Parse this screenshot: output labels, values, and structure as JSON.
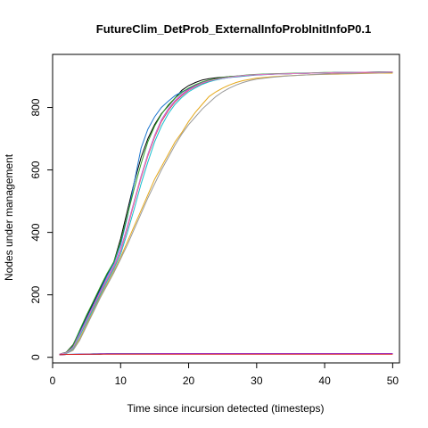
{
  "chart_data": {
    "type": "line",
    "title": "FutureClim_DetProb_ExternalInfoProbInitInfoP0.1",
    "xlabel": "Time since incursion detected (timesteps)",
    "ylabel": "Nodes under management",
    "xlim": [
      0,
      51
    ],
    "ylim": [
      -18,
      970
    ],
    "xticks": [
      0,
      10,
      20,
      30,
      40,
      50
    ],
    "yticks": [
      0,
      200,
      400,
      600,
      800
    ],
    "grid": false,
    "legend": "none",
    "series": [
      {
        "color": "#000000",
        "x": [
          1,
          2,
          3,
          4,
          5,
          6,
          7,
          8,
          9,
          10,
          11,
          12,
          13,
          14,
          15,
          16,
          17,
          18,
          19,
          20,
          21,
          22,
          23,
          24,
          25,
          26,
          27,
          28,
          29,
          30,
          32,
          34,
          36,
          38,
          40,
          42,
          44,
          46,
          48,
          50
        ],
        "y": [
          10,
          16,
          40,
          85,
          130,
          175,
          220,
          265,
          305,
          380,
          470,
          560,
          640,
          700,
          745,
          780,
          805,
          830,
          855,
          870,
          880,
          888,
          892,
          895,
          897,
          899,
          900,
          902,
          903,
          905,
          907,
          908,
          909,
          910,
          911,
          912,
          912,
          913,
          913,
          914
        ]
      },
      {
        "color": "#1f78d1",
        "x": [
          1,
          2,
          3,
          4,
          5,
          6,
          7,
          8,
          9,
          10,
          11,
          12,
          13,
          14,
          15,
          16,
          17,
          18,
          19,
          20,
          21,
          22,
          23,
          24,
          25,
          26,
          27,
          28,
          29,
          30,
          32,
          34,
          36,
          38,
          40,
          42,
          44,
          46,
          48,
          50
        ],
        "y": [
          10,
          15,
          35,
          80,
          125,
          170,
          215,
          260,
          300,
          360,
          450,
          560,
          670,
          730,
          770,
          800,
          820,
          838,
          850,
          860,
          870,
          878,
          884,
          889,
          893,
          896,
          898,
          900,
          902,
          904,
          906,
          908,
          909,
          910,
          911,
          912,
          913,
          913,
          914,
          914
        ]
      },
      {
        "color": "#e5a81a",
        "x": [
          1,
          2,
          3,
          4,
          5,
          6,
          7,
          8,
          9,
          10,
          11,
          12,
          13,
          14,
          15,
          16,
          17,
          18,
          19,
          20,
          21,
          22,
          23,
          24,
          25,
          26,
          27,
          28,
          29,
          30,
          32,
          34,
          36,
          38,
          40,
          42,
          44,
          46,
          48,
          50
        ],
        "y": [
          10,
          12,
          25,
          60,
          105,
          150,
          195,
          235,
          275,
          320,
          370,
          420,
          470,
          520,
          570,
          610,
          650,
          690,
          720,
          755,
          785,
          810,
          835,
          850,
          862,
          872,
          880,
          886,
          890,
          894,
          898,
          901,
          903,
          905,
          906,
          907,
          908,
          909,
          910,
          910
        ]
      },
      {
        "color": "#999999",
        "x": [
          1,
          2,
          3,
          4,
          5,
          6,
          7,
          8,
          9,
          10,
          11,
          12,
          13,
          14,
          15,
          16,
          17,
          18,
          19,
          20,
          21,
          22,
          23,
          24,
          25,
          26,
          27,
          28,
          29,
          30,
          32,
          34,
          36,
          38,
          40,
          42,
          44,
          46,
          48,
          50
        ],
        "y": [
          10,
          12,
          22,
          55,
          100,
          145,
          190,
          230,
          270,
          315,
          360,
          410,
          460,
          510,
          555,
          600,
          640,
          680,
          715,
          745,
          770,
          795,
          815,
          835,
          850,
          862,
          872,
          880,
          886,
          891,
          896,
          900,
          903,
          905,
          907,
          908,
          909,
          910,
          911,
          912
        ]
      },
      {
        "color": "#8a2be2",
        "x": [
          1,
          2,
          3,
          4,
          5,
          6,
          7,
          8,
          9,
          10,
          11,
          12,
          13,
          14,
          15,
          16,
          17,
          18,
          19,
          20,
          21,
          22,
          23,
          24,
          25,
          26,
          27,
          28,
          29,
          30,
          32,
          34,
          36,
          38,
          40,
          42,
          44,
          46,
          48,
          50
        ],
        "y": [
          10,
          14,
          32,
          75,
          120,
          165,
          210,
          252,
          292,
          345,
          420,
          500,
          580,
          650,
          710,
          760,
          795,
          822,
          842,
          858,
          870,
          879,
          886,
          891,
          895,
          898,
          900,
          902,
          904,
          905,
          907,
          908,
          909,
          910,
          911,
          912,
          912,
          913,
          913,
          914
        ]
      },
      {
        "color": "#d62728",
        "x": [
          1,
          2,
          3,
          4,
          5,
          6,
          7,
          8,
          9,
          10,
          11,
          12,
          13,
          14,
          15,
          16,
          17,
          18,
          19,
          20,
          21,
          22,
          23,
          24,
          25,
          26,
          27,
          28,
          29,
          30,
          32,
          34,
          36,
          38,
          40,
          42,
          44,
          46,
          48,
          50
        ],
        "y": [
          10,
          14,
          30,
          72,
          118,
          162,
          206,
          248,
          288,
          340,
          415,
          495,
          575,
          645,
          705,
          755,
          790,
          818,
          838,
          855,
          867,
          877,
          884,
          890,
          894,
          897,
          899,
          901,
          903,
          905,
          907,
          908,
          909,
          910,
          911,
          911,
          912,
          912,
          913,
          913
        ]
      },
      {
        "color": "#2ca02c",
        "x": [
          1,
          2,
          3,
          4,
          5,
          6,
          7,
          8,
          9,
          10,
          11,
          12,
          13,
          14,
          15,
          16,
          17,
          18,
          19,
          20,
          21,
          22,
          23,
          24,
          25,
          26,
          27,
          28,
          29,
          30,
          32,
          34,
          36,
          38,
          40,
          42,
          44,
          46,
          48,
          50
        ],
        "y": [
          10,
          15,
          38,
          88,
          135,
          180,
          225,
          268,
          305,
          370,
          455,
          540,
          620,
          690,
          740,
          778,
          808,
          830,
          848,
          862,
          873,
          882,
          888,
          892,
          896,
          899,
          901,
          903,
          905,
          906,
          908,
          909,
          910,
          911,
          912,
          912,
          913,
          913,
          914,
          914
        ]
      },
      {
        "color": "#17becf",
        "x": [
          1,
          2,
          3,
          4,
          5,
          6,
          7,
          8,
          9,
          10,
          11,
          12,
          13,
          14,
          15,
          16,
          17,
          18,
          19,
          20,
          21,
          22,
          23,
          24,
          25,
          26,
          27,
          28,
          29,
          30,
          32,
          34,
          36,
          38,
          40,
          42,
          44,
          46,
          48,
          50
        ],
        "y": [
          10,
          13,
          28,
          68,
          112,
          156,
          200,
          242,
          282,
          330,
          400,
          475,
          555,
          625,
          690,
          740,
          780,
          810,
          832,
          850,
          863,
          874,
          882,
          888,
          893,
          896,
          899,
          901,
          903,
          905,
          907,
          908,
          909,
          910,
          911,
          912,
          912,
          913,
          913,
          914
        ]
      },
      {
        "color": "#e377c2",
        "x": [
          1,
          2,
          3,
          4,
          5,
          6,
          7,
          8,
          9,
          10,
          11,
          12,
          13,
          14,
          15,
          16,
          17,
          18,
          19,
          20,
          21,
          22,
          23,
          24,
          25,
          26,
          27,
          28,
          29,
          30,
          32,
          34,
          36,
          38,
          40,
          42,
          44,
          46,
          48,
          50
        ],
        "y": [
          10,
          14,
          31,
          74,
          119,
          164,
          208,
          250,
          290,
          342,
          418,
          498,
          578,
          648,
          708,
          758,
          793,
          820,
          840,
          856,
          868,
          878,
          885,
          890,
          894,
          897,
          900,
          902,
          904,
          905,
          907,
          908,
          909,
          910,
          911,
          912,
          912,
          913,
          913,
          914
        ]
      },
      {
        "color": "#000000",
        "x": [
          1,
          2,
          3,
          4,
          5,
          6,
          7,
          8,
          9,
          10,
          12,
          14,
          16,
          18,
          20,
          22,
          24,
          26,
          28,
          30,
          32,
          34,
          36,
          38,
          40,
          42,
          44,
          46,
          48,
          50
        ],
        "y": [
          8,
          9,
          9,
          10,
          10,
          10,
          10,
          11,
          11,
          11,
          11,
          11,
          11,
          11,
          11,
          11,
          11,
          11,
          11,
          11,
          11,
          11,
          11,
          11,
          11,
          11,
          11,
          11,
          11,
          11
        ]
      },
      {
        "color": "#1f78d1",
        "x": [
          1,
          2,
          3,
          4,
          5,
          6,
          7,
          8,
          9,
          10,
          12,
          14,
          16,
          18,
          20,
          22,
          24,
          26,
          28,
          30,
          32,
          34,
          36,
          38,
          40,
          42,
          44,
          46,
          48,
          50
        ],
        "y": [
          8,
          9,
          10,
          10,
          10,
          11,
          11,
          11,
          11,
          11,
          11,
          11,
          11,
          11,
          11,
          11,
          11,
          11,
          11,
          11,
          11,
          11,
          11,
          11,
          11,
          11,
          11,
          11,
          11,
          11
        ]
      },
      {
        "color": "#8a2be2",
        "x": [
          1,
          2,
          3,
          4,
          5,
          6,
          7,
          8,
          9,
          10,
          12,
          14,
          16,
          18,
          20,
          22,
          24,
          26,
          28,
          30,
          32,
          34,
          36,
          38,
          40,
          42,
          44,
          46,
          48,
          50
        ],
        "y": [
          8,
          9,
          9,
          10,
          10,
          10,
          11,
          11,
          11,
          11,
          11,
          11,
          12,
          12,
          12,
          12,
          12,
          12,
          12,
          12,
          12,
          12,
          12,
          12,
          12,
          12,
          12,
          12,
          12,
          12
        ]
      },
      {
        "color": "#d62728",
        "x": [
          1,
          2,
          3,
          4,
          5,
          6,
          7,
          8,
          9,
          10,
          12,
          14,
          16,
          18,
          20,
          22,
          24,
          26,
          28,
          30,
          32,
          34,
          36,
          38,
          40,
          42,
          44,
          46,
          48,
          50
        ],
        "y": [
          8,
          9,
          9,
          9,
          10,
          10,
          10,
          10,
          10,
          10,
          10,
          10,
          10,
          10,
          10,
          10,
          10,
          10,
          10,
          10,
          10,
          10,
          10,
          10,
          10,
          10,
          10,
          10,
          10,
          10
        ]
      }
    ]
  }
}
